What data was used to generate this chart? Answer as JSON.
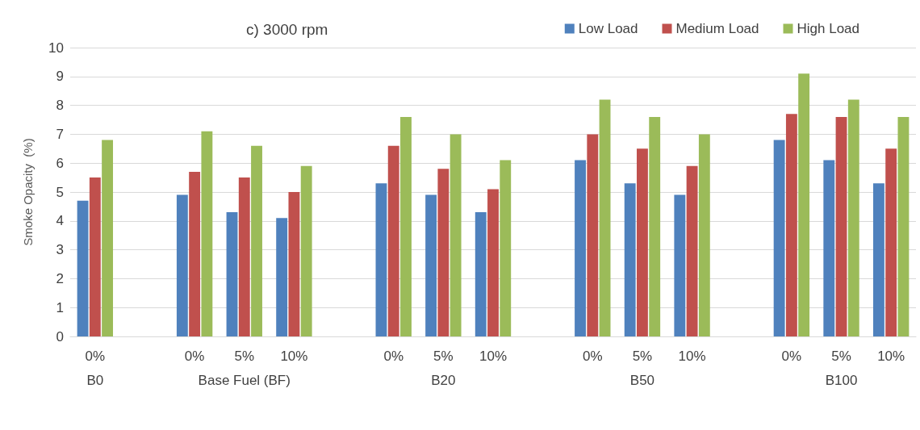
{
  "chart_data": {
    "type": "bar",
    "title": "c) 3000 rpm",
    "ylabel": "Smoke Opacity  (%)",
    "categories": [
      "0%",
      null,
      "0%",
      "5%",
      "10%",
      null,
      "0%",
      "5%",
      "10%",
      null,
      "0%",
      "5%",
      "10%",
      null,
      "0%",
      "5%",
      "10%"
    ],
    "series": [
      {
        "name": "Low Load",
        "color": "#4f81bd",
        "values": [
          4.7,
          null,
          4.9,
          4.3,
          4.1,
          null,
          5.3,
          4.9,
          4.3,
          null,
          6.1,
          5.3,
          4.9,
          null,
          6.8,
          6.1,
          5.3
        ]
      },
      {
        "name": "Medium Load",
        "color": "#c0504d",
        "values": [
          5.5,
          null,
          5.7,
          5.5,
          5.0,
          null,
          6.6,
          5.8,
          5.1,
          null,
          7.0,
          6.5,
          5.9,
          null,
          7.7,
          7.6,
          6.5
        ]
      },
      {
        "name": "High Load",
        "color": "#9bbb59",
        "values": [
          6.8,
          null,
          7.1,
          6.6,
          5.9,
          null,
          7.6,
          7.0,
          6.1,
          null,
          8.2,
          7.6,
          7.0,
          null,
          9.1,
          8.2,
          7.6
        ]
      }
    ],
    "annotations": [
      "B0",
      "Base Fuel (BF)",
      "B20",
      "B50",
      "B100"
    ],
    "ylim": [
      0,
      10
    ],
    "yticks": [
      0,
      1,
      2,
      3,
      4,
      5,
      6,
      7,
      8,
      9,
      10
    ],
    "grid": "y",
    "legend": "top right"
  }
}
